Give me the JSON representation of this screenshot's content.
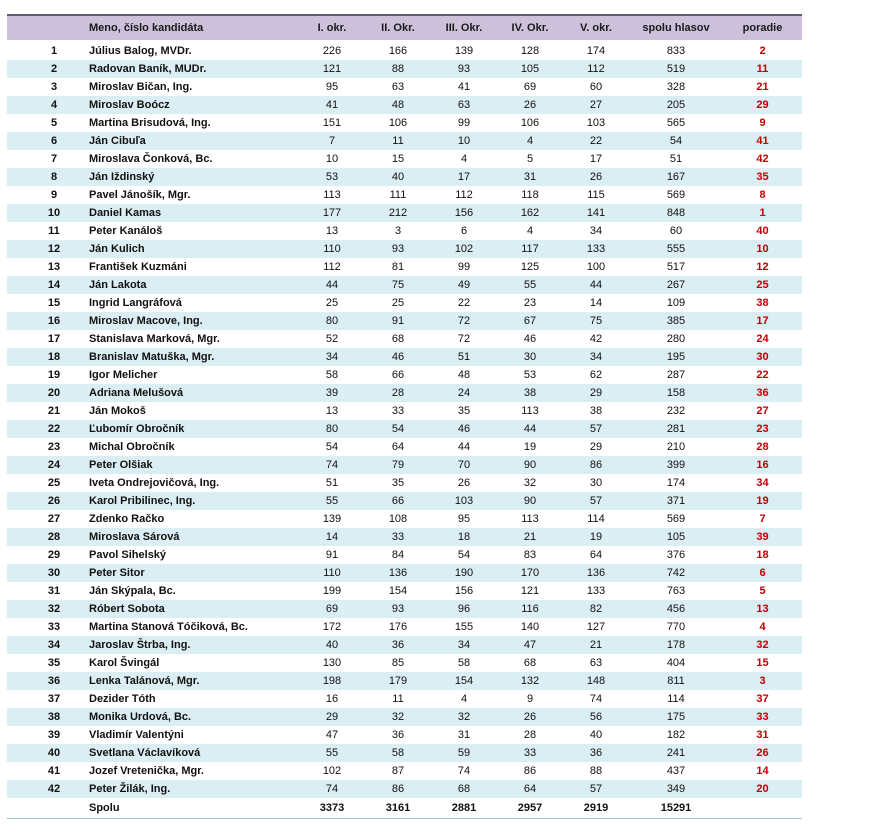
{
  "table": {
    "columns": [
      "",
      "Meno, číslo kandidáta",
      "I. okr.",
      "II. Okr.",
      "III. Okr.",
      "IV. Okr.",
      "V. okr.",
      "spolu hlasov",
      "poradie"
    ],
    "rows": [
      {
        "num": 1,
        "name": "Július Balog, MVDr.",
        "votes": [
          226,
          166,
          139,
          128,
          174
        ],
        "spolu": 833,
        "poradie": 2
      },
      {
        "num": 2,
        "name": "Radovan Baník, MUDr.",
        "votes": [
          121,
          88,
          93,
          105,
          112
        ],
        "spolu": 519,
        "poradie": 11
      },
      {
        "num": 3,
        "name": "Miroslav Bičan, Ing.",
        "votes": [
          95,
          63,
          41,
          69,
          60
        ],
        "spolu": 328,
        "poradie": 21
      },
      {
        "num": 4,
        "name": "Miroslav Boócz",
        "votes": [
          41,
          48,
          63,
          26,
          27
        ],
        "spolu": 205,
        "poradie": 29
      },
      {
        "num": 5,
        "name": "Martina Brisudová, Ing.",
        "votes": [
          151,
          106,
          99,
          106,
          103
        ],
        "spolu": 565,
        "poradie": 9
      },
      {
        "num": 6,
        "name": "Ján Cibuľa",
        "votes": [
          7,
          11,
          10,
          4,
          22
        ],
        "spolu": 54,
        "poradie": 41
      },
      {
        "num": 7,
        "name": "Miroslava Čonková, Bc.",
        "votes": [
          10,
          15,
          4,
          5,
          17
        ],
        "spolu": 51,
        "poradie": 42
      },
      {
        "num": 8,
        "name": "Ján Iždinský",
        "votes": [
          53,
          40,
          17,
          31,
          26
        ],
        "spolu": 167,
        "poradie": 35
      },
      {
        "num": 9,
        "name": "Pavel Jánošík, Mgr.",
        "votes": [
          113,
          111,
          112,
          118,
          115
        ],
        "spolu": 569,
        "poradie": 8
      },
      {
        "num": 10,
        "name": "Daniel Kamas",
        "votes": [
          177,
          212,
          156,
          162,
          141
        ],
        "spolu": 848,
        "poradie": 1
      },
      {
        "num": 11,
        "name": "Peter Kanáloš",
        "votes": [
          13,
          3,
          6,
          4,
          34
        ],
        "spolu": 60,
        "poradie": 40
      },
      {
        "num": 12,
        "name": "Ján Kulich",
        "votes": [
          110,
          93,
          102,
          117,
          133
        ],
        "spolu": 555,
        "poradie": 10
      },
      {
        "num": 13,
        "name": "František Kuzmáni",
        "votes": [
          112,
          81,
          99,
          125,
          100
        ],
        "spolu": 517,
        "poradie": 12
      },
      {
        "num": 14,
        "name": "Ján Lakota",
        "votes": [
          44,
          75,
          49,
          55,
          44
        ],
        "spolu": 267,
        "poradie": 25
      },
      {
        "num": 15,
        "name": "Ingrid Langráfová",
        "votes": [
          25,
          25,
          22,
          23,
          14
        ],
        "spolu": 109,
        "poradie": 38
      },
      {
        "num": 16,
        "name": "Miroslav Macove, Ing.",
        "votes": [
          80,
          91,
          72,
          67,
          75
        ],
        "spolu": 385,
        "poradie": 17
      },
      {
        "num": 17,
        "name": "Stanislava Marková, Mgr.",
        "votes": [
          52,
          68,
          72,
          46,
          42
        ],
        "spolu": 280,
        "poradie": 24
      },
      {
        "num": 18,
        "name": "Branislav Matuška, Mgr.",
        "votes": [
          34,
          46,
          51,
          30,
          34
        ],
        "spolu": 195,
        "poradie": 30
      },
      {
        "num": 19,
        "name": "Igor Melicher",
        "votes": [
          58,
          66,
          48,
          53,
          62
        ],
        "spolu": 287,
        "poradie": 22
      },
      {
        "num": 20,
        "name": "Adriana Melušová",
        "votes": [
          39,
          28,
          24,
          38,
          29
        ],
        "spolu": 158,
        "poradie": 36
      },
      {
        "num": 21,
        "name": "Ján Mokoš",
        "votes": [
          13,
          33,
          35,
          113,
          38
        ],
        "spolu": 232,
        "poradie": 27
      },
      {
        "num": 22,
        "name": "Ľubomír Obročník",
        "votes": [
          80,
          54,
          46,
          44,
          57
        ],
        "spolu": 281,
        "poradie": 23
      },
      {
        "num": 23,
        "name": "Michal Obročník",
        "votes": [
          54,
          64,
          44,
          19,
          29
        ],
        "spolu": 210,
        "poradie": 28
      },
      {
        "num": 24,
        "name": "Peter Olšiak",
        "votes": [
          74,
          79,
          70,
          90,
          86
        ],
        "spolu": 399,
        "poradie": 16
      },
      {
        "num": 25,
        "name": "Iveta Ondrejovičová, Ing.",
        "votes": [
          51,
          35,
          26,
          32,
          30
        ],
        "spolu": 174,
        "poradie": 34
      },
      {
        "num": 26,
        "name": "Karol Pribilinec, Ing.",
        "votes": [
          55,
          66,
          103,
          90,
          57
        ],
        "spolu": 371,
        "poradie": 19
      },
      {
        "num": 27,
        "name": "Zdenko Račko",
        "votes": [
          139,
          108,
          95,
          113,
          114
        ],
        "spolu": 569,
        "poradie": 7
      },
      {
        "num": 28,
        "name": "Miroslava Sárová",
        "votes": [
          14,
          33,
          18,
          21,
          19
        ],
        "spolu": 105,
        "poradie": 39
      },
      {
        "num": 29,
        "name": "Pavol Sihelský",
        "votes": [
          91,
          84,
          54,
          83,
          64
        ],
        "spolu": 376,
        "poradie": 18
      },
      {
        "num": 30,
        "name": "Peter Sitor",
        "votes": [
          110,
          136,
          190,
          170,
          136
        ],
        "spolu": 742,
        "poradie": 6
      },
      {
        "num": 31,
        "name": "Ján Skýpala, Bc.",
        "votes": [
          199,
          154,
          156,
          121,
          133
        ],
        "spolu": 763,
        "poradie": 5
      },
      {
        "num": 32,
        "name": "Róbert Sobota",
        "votes": [
          69,
          93,
          96,
          116,
          82
        ],
        "spolu": 456,
        "poradie": 13
      },
      {
        "num": 33,
        "name": "Martina Stanová Tóčiková, Bc.",
        "votes": [
          172,
          176,
          155,
          140,
          127
        ],
        "spolu": 770,
        "poradie": 4
      },
      {
        "num": 34,
        "name": "Jaroslav Štrba, Ing.",
        "votes": [
          40,
          36,
          34,
          47,
          21
        ],
        "spolu": 178,
        "poradie": 32
      },
      {
        "num": 35,
        "name": "Karol Švingál",
        "votes": [
          130,
          85,
          58,
          68,
          63
        ],
        "spolu": 404,
        "poradie": 15
      },
      {
        "num": 36,
        "name": "Lenka Talánová, Mgr.",
        "votes": [
          198,
          179,
          154,
          132,
          148
        ],
        "spolu": 811,
        "poradie": 3
      },
      {
        "num": 37,
        "name": "Dezider Tóth",
        "votes": [
          16,
          11,
          4,
          9,
          74
        ],
        "spolu": 114,
        "poradie": 37
      },
      {
        "num": 38,
        "name": "Monika Urdová, Bc.",
        "votes": [
          29,
          32,
          32,
          26,
          56
        ],
        "spolu": 175,
        "poradie": 33
      },
      {
        "num": 39,
        "name": "Vladimír Valentýni",
        "votes": [
          47,
          36,
          31,
          28,
          40
        ],
        "spolu": 182,
        "poradie": 31
      },
      {
        "num": 40,
        "name": "Svetlana Václavíková",
        "votes": [
          55,
          58,
          59,
          33,
          36
        ],
        "spolu": 241,
        "poradie": 26
      },
      {
        "num": 41,
        "name": "Jozef Vretenička, Mgr.",
        "votes": [
          102,
          87,
          74,
          86,
          88
        ],
        "spolu": 437,
        "poradie": 14
      },
      {
        "num": 42,
        "name": "Peter Žilák, Ing.",
        "votes": [
          74,
          86,
          68,
          64,
          57
        ],
        "spolu": 349,
        "poradie": 20
      }
    ],
    "footer": {
      "label": "Spolu",
      "totals": [
        3373,
        3161,
        2881,
        2957,
        2919
      ],
      "grand_total": 15291
    },
    "colors": {
      "header_bg": "#ccc0da",
      "alt_row_bg": "#daeef3",
      "rank_color": "#c00000"
    }
  }
}
